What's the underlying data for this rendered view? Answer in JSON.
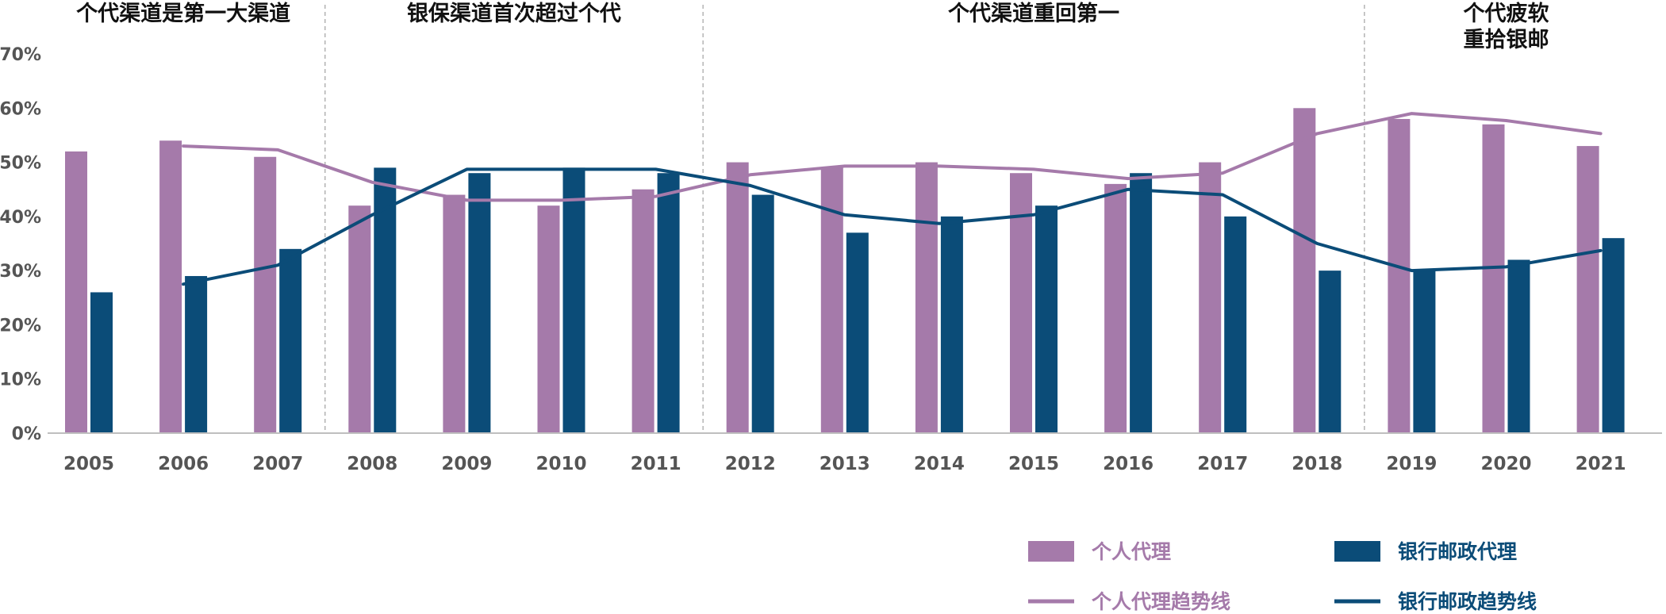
{
  "colors": {
    "personal": "#a57aaa",
    "bank": "#0b4c78",
    "axis": "#bfbfbf",
    "divider": "#a8a8a8",
    "tick_text": "#555555",
    "era_text": "#111111"
  },
  "chart_data": {
    "type": "bar",
    "categories": [
      "2005",
      "2006",
      "2007",
      "2008",
      "2009",
      "2010",
      "2011",
      "2012",
      "2013",
      "2014",
      "2015",
      "2016",
      "2017",
      "2018",
      "2019",
      "2020",
      "2021"
    ],
    "ylim": [
      0,
      0.7
    ],
    "yticks": [
      "0%",
      "10%",
      "20%",
      "30%",
      "40%",
      "50%",
      "60%",
      "70%"
    ],
    "grid": false,
    "legend_position": "bottom-right",
    "series": [
      {
        "name": "个人代理",
        "kind": "bar",
        "color": "#a57aaa",
        "values": [
          0.52,
          0.54,
          0.51,
          0.42,
          0.44,
          0.42,
          0.45,
          0.5,
          0.49,
          0.5,
          0.48,
          0.46,
          0.5,
          0.6,
          0.58,
          0.57,
          0.53
        ]
      },
      {
        "name": "银行邮政代理",
        "kind": "bar",
        "color": "#0b4c78",
        "values": [
          0.26,
          0.29,
          0.34,
          0.49,
          0.48,
          0.49,
          0.48,
          0.44,
          0.37,
          0.4,
          0.42,
          0.48,
          0.4,
          0.3,
          0.3,
          0.32,
          0.36
        ]
      },
      {
        "name": "个人代理趋势线",
        "kind": "line",
        "color": "#a57aaa",
        "values": [
          null,
          0.53,
          0.523,
          0.463,
          0.43,
          0.43,
          0.437,
          0.477,
          0.493,
          0.493,
          0.487,
          0.47,
          0.48,
          0.553,
          0.59,
          0.577,
          0.553
        ]
      },
      {
        "name": "银行邮政趋势线",
        "kind": "line",
        "color": "#0b4c78",
        "values": [
          null,
          0.275,
          0.31,
          0.403,
          0.487,
          0.487,
          0.487,
          0.457,
          0.403,
          0.387,
          0.403,
          0.45,
          0.44,
          0.35,
          0.3,
          0.307,
          0.337
        ]
      }
    ],
    "dividers_between": [
      "2007",
      "2008",
      "2011",
      "2012",
      "2018",
      "2019"
    ],
    "eras": [
      {
        "lines": [
          "个代渠道是第一大渠道"
        ],
        "start": "2005",
        "end": "2007"
      },
      {
        "lines": [
          "银保渠道首次超过个代"
        ],
        "start": "2008",
        "end": "2011"
      },
      {
        "lines": [
          "个代渠道重回第一"
        ],
        "start": "2012",
        "end": "2018"
      },
      {
        "lines": [
          "个代疲软",
          "重拾银邮"
        ],
        "start": "2019",
        "end": "2021"
      }
    ]
  }
}
